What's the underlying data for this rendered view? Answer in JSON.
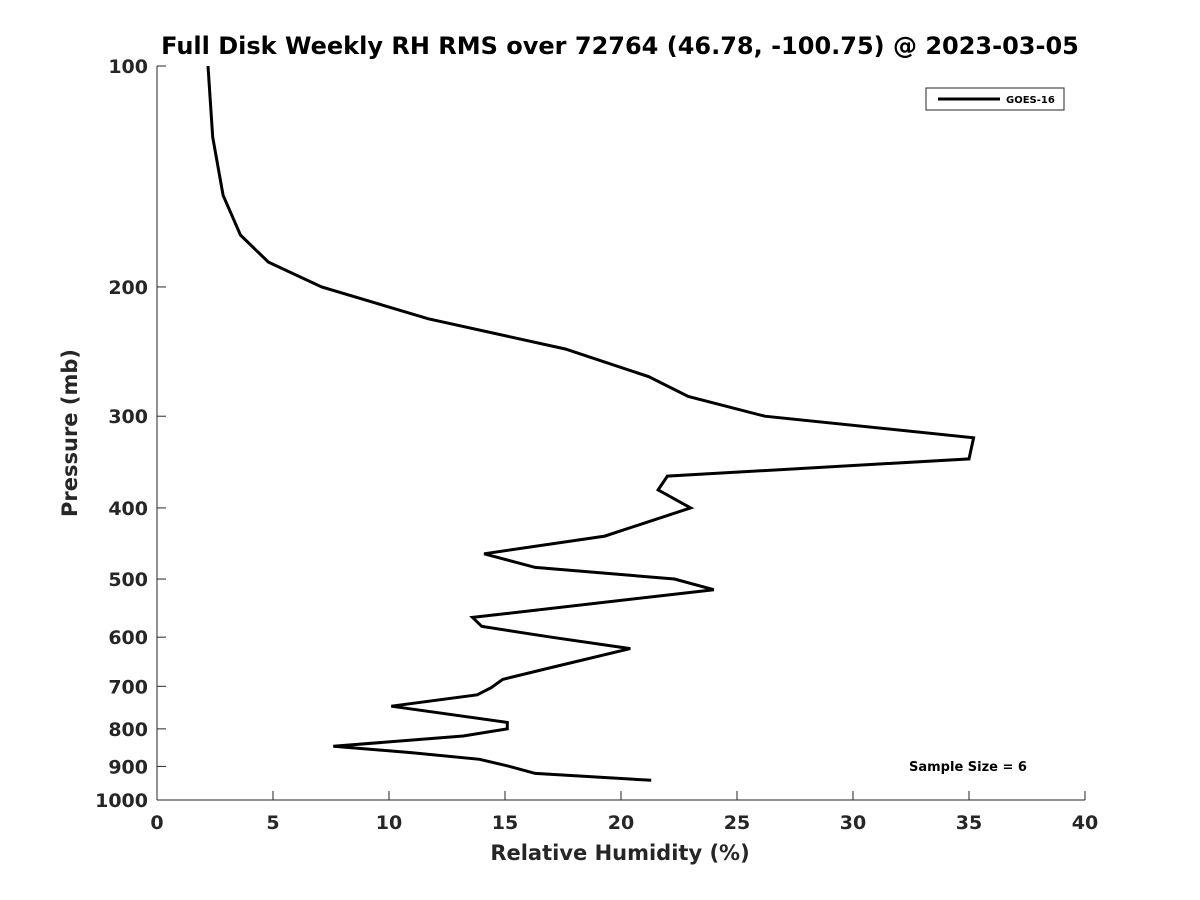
{
  "chart_data": {
    "type": "line",
    "title": "Full Disk Weekly RH RMS over 72764 (46.78, -100.75) @ 2023-03-05",
    "xlabel": "Relative Humidity (%)",
    "ylabel": "Pressure (mb)",
    "xlim": [
      0,
      40
    ],
    "ylim": [
      100,
      1000
    ],
    "yscale": "log",
    "y_reversed": true,
    "xticks": [
      0,
      5,
      10,
      15,
      20,
      25,
      30,
      35,
      40
    ],
    "yticks": [
      100,
      200,
      300,
      400,
      500,
      600,
      700,
      800,
      900,
      1000
    ],
    "grid": false,
    "legend_position": "top-right",
    "line_color": "#000000",
    "series": [
      {
        "name": "GOES-16",
        "points": [
          {
            "x": 2.2,
            "y": 100
          },
          {
            "x": 2.4,
            "y": 125
          },
          {
            "x": 2.85,
            "y": 150
          },
          {
            "x": 3.6,
            "y": 170
          },
          {
            "x": 4.8,
            "y": 185
          },
          {
            "x": 7.1,
            "y": 200
          },
          {
            "x": 11.7,
            "y": 221
          },
          {
            "x": 17.6,
            "y": 243
          },
          {
            "x": 21.2,
            "y": 265
          },
          {
            "x": 22.9,
            "y": 282
          },
          {
            "x": 26.2,
            "y": 300
          },
          {
            "x": 35.2,
            "y": 321
          },
          {
            "x": 35.0,
            "y": 343
          },
          {
            "x": 22.0,
            "y": 362
          },
          {
            "x": 21.6,
            "y": 378
          },
          {
            "x": 23.0,
            "y": 400
          },
          {
            "x": 19.3,
            "y": 437
          },
          {
            "x": 14.1,
            "y": 462
          },
          {
            "x": 16.3,
            "y": 482
          },
          {
            "x": 22.3,
            "y": 500
          },
          {
            "x": 24.0,
            "y": 517
          },
          {
            "x": 13.6,
            "y": 564
          },
          {
            "x": 14.0,
            "y": 580
          },
          {
            "x": 17.0,
            "y": 600
          },
          {
            "x": 20.4,
            "y": 622
          },
          {
            "x": 17.0,
            "y": 660
          },
          {
            "x": 14.9,
            "y": 685
          },
          {
            "x": 14.4,
            "y": 703
          },
          {
            "x": 13.8,
            "y": 719
          },
          {
            "x": 10.1,
            "y": 745
          },
          {
            "x": 15.1,
            "y": 784
          },
          {
            "x": 15.1,
            "y": 800
          },
          {
            "x": 13.2,
            "y": 818
          },
          {
            "x": 7.6,
            "y": 845
          },
          {
            "x": 11.0,
            "y": 862
          },
          {
            "x": 13.9,
            "y": 880
          },
          {
            "x": 15.2,
            "y": 900
          },
          {
            "x": 16.3,
            "y": 920
          },
          {
            "x": 21.3,
            "y": 940
          }
        ]
      }
    ],
    "annotation": "Sample Size = 6"
  }
}
